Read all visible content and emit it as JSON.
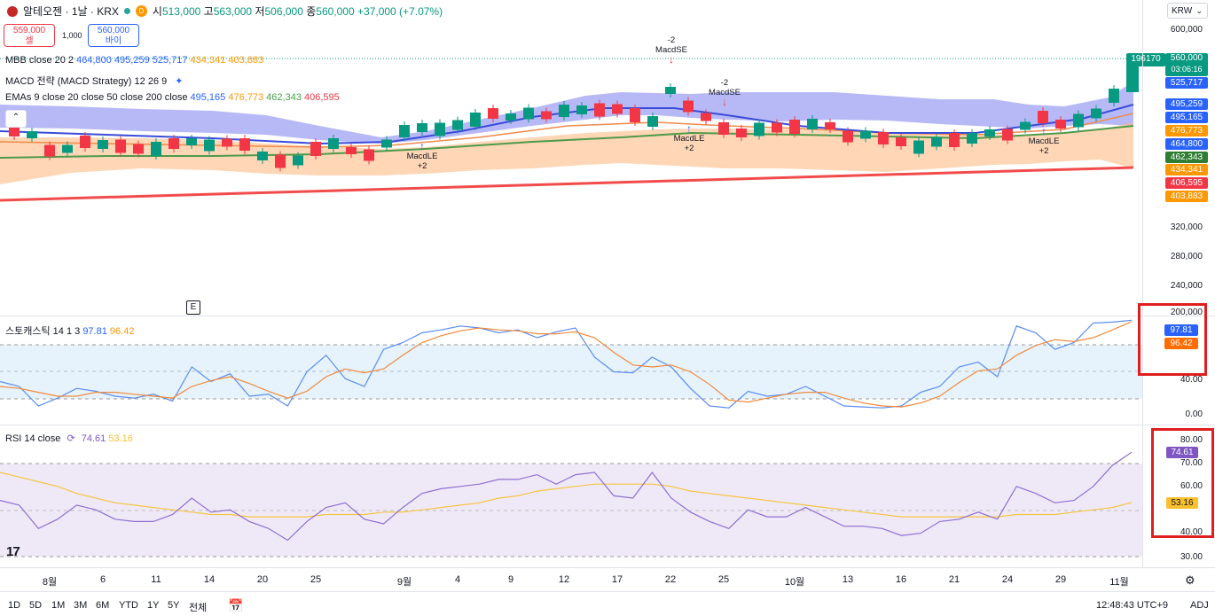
{
  "header": {
    "symbol_title": "알테오젠 · 1날 · KRX",
    "badge_letter": "D",
    "ohlc": [
      {
        "k": "시",
        "v": "513,000"
      },
      {
        "k": "고",
        "v": "563,000"
      },
      {
        "k": "저",
        "v": "506,000"
      },
      {
        "k": "종",
        "v": "560,000"
      },
      {
        "k": "",
        "v": "+37,000 (+7.07%)"
      }
    ],
    "currency": "KRW"
  },
  "trade": {
    "sell_price": "559,000",
    "sell_label": "셀",
    "spread": "1,000",
    "buy_price": "560,000",
    "buy_label": "바이"
  },
  "legends": {
    "mbb": {
      "name": "MBB close 20 2",
      "values": [
        "464,800",
        "495,259",
        "525,717",
        "434,341",
        "403,883"
      ],
      "colors": [
        "#2962ff",
        "#2962ff",
        "#2962ff",
        "#ff9800",
        "#ff9800"
      ]
    },
    "macd": {
      "name": "MACD 전략 (MACD Strategy) 12 26 9"
    },
    "emas": {
      "name": "EMAs 9 close 20 close 50 close 200 close",
      "values": [
        "495,165",
        "476,773",
        "462,343",
        "406,595"
      ],
      "colors": [
        "#2962ff",
        "#ff9800",
        "#43a047",
        "#f23645"
      ]
    },
    "stoch": {
      "name": "스토캐스틱 14 1 3",
      "values": [
        "97.81",
        "96.42"
      ],
      "colors": [
        "#2962ff",
        "#ff9800"
      ]
    },
    "rsi": {
      "name": "RSI 14 close",
      "values": [
        "74.61",
        "53.16"
      ],
      "colors": [
        "#7e57c2",
        "#fbc02d"
      ]
    }
  },
  "price_axis": {
    "ticks": [
      "600,000",
      "320,000",
      "280,000",
      "240,000",
      "200,000"
    ],
    "labels": [
      {
        "text": "196170",
        "color": "#089981"
      },
      {
        "text": "560,000",
        "color": "#089981"
      },
      {
        "text": "03:06:16",
        "color": "#089981"
      },
      {
        "text": "525,717",
        "color": "#2962ff"
      },
      {
        "text": "495,259",
        "color": "#2962ff"
      },
      {
        "text": "495,165",
        "color": "#2962ff"
      },
      {
        "text": "476,773",
        "color": "#ff9800"
      },
      {
        "text": "464,800",
        "color": "#2962ff"
      },
      {
        "text": "462,343",
        "color": "#43a047"
      },
      {
        "text": "434,341",
        "color": "#ff9800"
      },
      {
        "text": "406,595",
        "color": "#f23645"
      },
      {
        "text": "403,883",
        "color": "#ff9800"
      }
    ]
  },
  "stoch_axis": {
    "ticks": [
      "40.00",
      "0.00"
    ],
    "k_label": "97.81",
    "d_label": "96.42"
  },
  "rsi_axis": {
    "ticks": [
      "80.00",
      "70.00",
      "60.00",
      "40.00",
      "30.00"
    ],
    "rsi_label": "74.61",
    "ma_label": "53.16"
  },
  "annotations": {
    "macdse1": {
      "qty": "-2",
      "name": "MacdSE"
    },
    "macdse2": {
      "qty": "-2",
      "name": "MacdSE"
    },
    "macdle1": {
      "name": "MacdLE",
      "qty": "+2"
    },
    "macdle2": {
      "name": "MacdLE",
      "qty": "+2"
    },
    "macdle3": {
      "name": "MacdLE",
      "qty": "+2"
    },
    "earnings_marker": "E"
  },
  "x_axis": {
    "labels": [
      "8월",
      "6",
      "11",
      "14",
      "20",
      "25",
      "9월",
      "4",
      "9",
      "12",
      "17",
      "22",
      "25",
      "10월",
      "13",
      "16",
      "21",
      "24",
      "29",
      "11월"
    ]
  },
  "timeframes": [
    "1D",
    "5D",
    "1M",
    "3M",
    "6M",
    "YTD",
    "1Y",
    "5Y",
    "전체"
  ],
  "footer": {
    "clock": "12:48:43 UTC+9",
    "adj": "ADJ",
    "logo_text": "17"
  },
  "chart_data": [
    {
      "type": "line",
      "title": "스토캐스틱 14 1 3",
      "ylim": [
        0,
        100
      ],
      "series": [
        {
          "name": "%K",
          "values": [
            35,
            30,
            10,
            18,
            28,
            25,
            20,
            18,
            22,
            15,
            50,
            35,
            43,
            20,
            22,
            10,
            45,
            62,
            38,
            30,
            68,
            75,
            85,
            88,
            92,
            90,
            85,
            88,
            80,
            86,
            90,
            60,
            45,
            44,
            60,
            50,
            28,
            10,
            8,
            25,
            20,
            22,
            30,
            20,
            10,
            9,
            8,
            10,
            24,
            30,
            50,
            55,
            40,
            92,
            85,
            68,
            75,
            95,
            96,
            97.81
          ]
        },
        {
          "name": "%D",
          "values": [
            30,
            28,
            24,
            20,
            20,
            24,
            24,
            22,
            20,
            18,
            30,
            36,
            40,
            33,
            25,
            18,
            25,
            40,
            48,
            44,
            48,
            62,
            75,
            82,
            87,
            90,
            88,
            87,
            84,
            84,
            86,
            80,
            65,
            52,
            50,
            52,
            45,
            32,
            16,
            14,
            18,
            22,
            24,
            24,
            18,
            13,
            10,
            9,
            13,
            20,
            34,
            46,
            48,
            62,
            72,
            78,
            76,
            80,
            88,
            96.42
          ]
        }
      ]
    },
    {
      "type": "line",
      "title": "RSI 14 close",
      "ylim": [
        30,
        80
      ],
      "series": [
        {
          "name": "RSI",
          "values": [
            54,
            52,
            42,
            46,
            52,
            50,
            46,
            45,
            45,
            48,
            55,
            49,
            50,
            45,
            42,
            37,
            45,
            51,
            53,
            46,
            44,
            51,
            57,
            59,
            60,
            61,
            63,
            63,
            65,
            61,
            65,
            66,
            56,
            55,
            66,
            55,
            49,
            45,
            42,
            50,
            47,
            47,
            51,
            47,
            43,
            43,
            42,
            39,
            40,
            45,
            46,
            49,
            46,
            60,
            57,
            53,
            54,
            60,
            69,
            74.61
          ]
        },
        {
          "name": "RSI MA",
          "values": [
            66,
            64,
            62,
            60,
            57,
            55,
            53,
            52,
            51,
            50,
            49,
            48,
            48,
            47,
            47,
            47,
            47,
            48,
            48,
            48,
            49,
            49,
            50,
            51,
            52,
            53,
            55,
            56,
            58,
            59,
            60,
            61,
            61,
            61,
            61,
            60,
            58,
            57,
            56,
            55,
            54,
            53,
            52,
            51,
            50,
            49,
            48,
            47,
            47,
            47,
            47,
            47,
            47,
            48,
            48,
            48,
            49,
            50,
            51,
            53.16
          ]
        }
      ]
    }
  ]
}
